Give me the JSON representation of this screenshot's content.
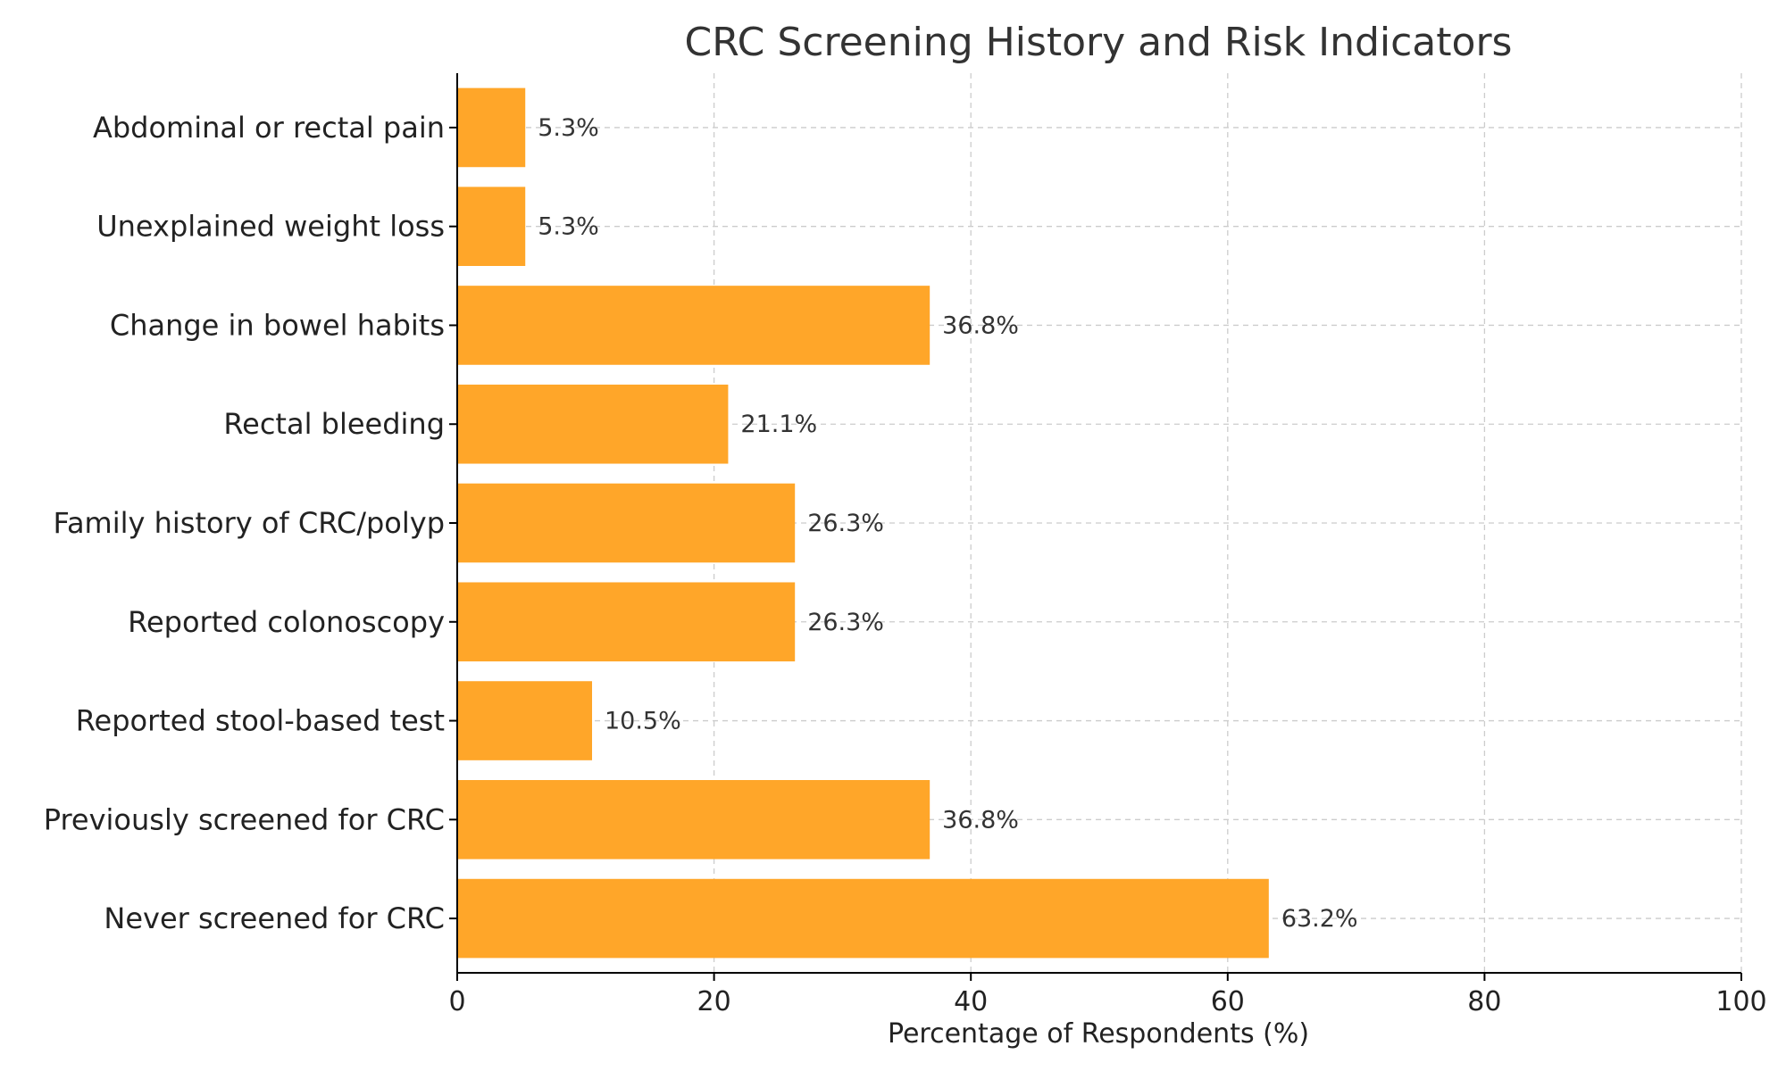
{
  "chart_data": {
    "type": "bar",
    "orientation": "horizontal",
    "title": "CRC Screening History and Risk Indicators",
    "xlabel": "Percentage of Respondents (%)",
    "ylabel": "",
    "xlim": [
      0,
      100
    ],
    "xticks": [
      0,
      20,
      40,
      60,
      80,
      100
    ],
    "xtick_labels": [
      "0",
      "20",
      "40",
      "60",
      "80",
      "100"
    ],
    "categories": [
      "Never screened for CRC",
      "Previously screened for CRC",
      "Reported stool-based test",
      "Reported colonoscopy",
      "Family history of CRC/polyp",
      "Rectal bleeding",
      "Change in bowel habits",
      "Unexplained weight loss",
      "Abdominal or rectal pain"
    ],
    "values": [
      63.2,
      36.8,
      10.5,
      26.3,
      26.3,
      21.1,
      36.8,
      5.3,
      5.3
    ],
    "value_labels": [
      "63.2%",
      "36.8%",
      "10.5%",
      "26.3%",
      "26.3%",
      "21.1%",
      "36.8%",
      "5.3%",
      "5.3%"
    ],
    "bar_color": "#FFA629",
    "grid": true,
    "grid_style": "dashed",
    "grid_color": "#cccccc",
    "axis_color": "#000000"
  }
}
